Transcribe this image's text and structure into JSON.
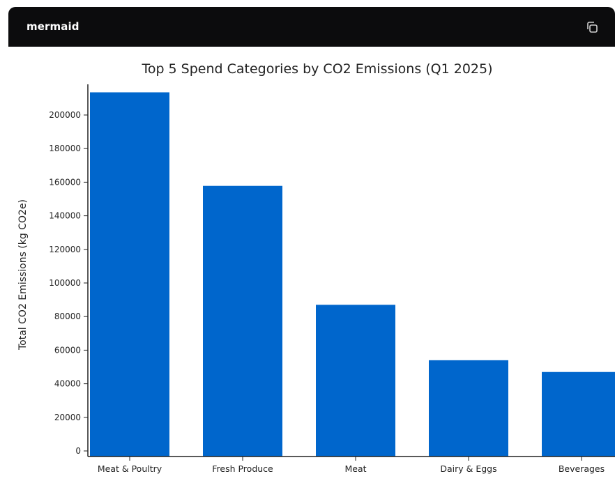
{
  "header": {
    "language_label": "mermaid",
    "copy_icon": "copy-icon"
  },
  "colors": {
    "header_bg": "#0c0c0d",
    "bar": "#0066cc",
    "axis": "#222222"
  },
  "chart_data": {
    "type": "bar",
    "title": "Top 5 Spend Categories by CO2 Emissions (Q1 2025)",
    "xlabel": "",
    "ylabel": "Total CO2 Emissions (kg CO2e)",
    "categories": [
      "Meat & Poultry",
      "Fresh Produce",
      "Meat",
      "Dairy & Eggs",
      "Beverages"
    ],
    "values": [
      213500,
      157800,
      87000,
      54000,
      47000
    ],
    "ylim": [
      0,
      220000
    ],
    "yticks": [
      "0",
      "20000",
      "40000",
      "60000",
      "80000",
      "100000",
      "120000",
      "140000",
      "160000",
      "180000",
      "200000"
    ],
    "grid": false,
    "legend": "none"
  }
}
